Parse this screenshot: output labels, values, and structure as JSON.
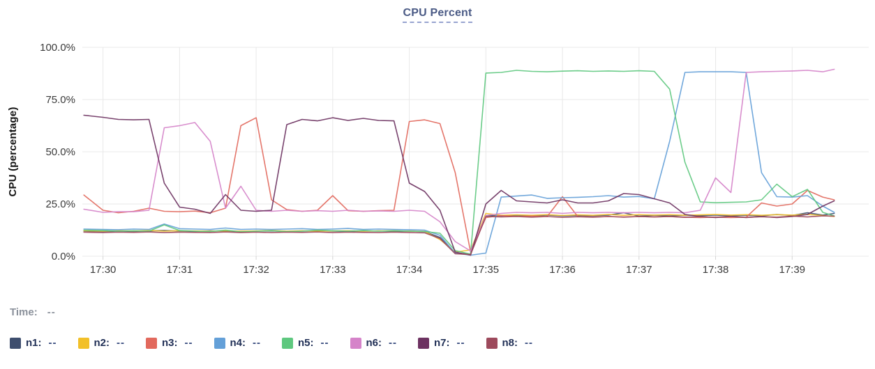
{
  "title": "CPU Percent",
  "y_axis_title": "CPU (percentage)",
  "time": {
    "label": "Time:",
    "value": "--"
  },
  "legend": {
    "items": [
      {
        "label": "n1:",
        "value": "--",
        "color": "#3e4e6e"
      },
      {
        "label": "n2:",
        "value": "--",
        "color": "#f2c029"
      },
      {
        "label": "n3:",
        "value": "--",
        "color": "#e2695d"
      },
      {
        "label": "n4:",
        "value": "--",
        "color": "#64a0d8"
      },
      {
        "label": "n5:",
        "value": "--",
        "color": "#5ec87f"
      },
      {
        "label": "n6:",
        "value": "--",
        "color": "#d583c9"
      },
      {
        "label": "n7:",
        "value": "--",
        "color": "#6d3261"
      },
      {
        "label": "n8:",
        "value": "--",
        "color": "#9d4a5c"
      }
    ]
  },
  "colors": {
    "title": "#4a5a85",
    "title_underline": "#97a3cf",
    "gridline": "#e8e8e8",
    "tick_mark": "#d4d4d4",
    "tick_text": "#3a3a3a"
  },
  "chart_data": {
    "type": "line",
    "title": "CPU Percent",
    "xlabel": "",
    "ylabel": "CPU (percentage)",
    "x_unit": "minutes after 17:30",
    "xlim": [
      -0.27,
      10.0
    ],
    "ylim": [
      0,
      100
    ],
    "grid": true,
    "legend_position": "bottom",
    "y_ticks": [
      0,
      25,
      50,
      75,
      100
    ],
    "y_tick_labels": [
      "0.0%",
      "25.0%",
      "50.0%",
      "75.0%",
      "100.0%"
    ],
    "x_ticks": [
      0,
      1,
      2,
      3,
      4,
      5,
      6,
      7,
      8,
      9
    ],
    "x_tick_labels": [
      "17:30",
      "17:31",
      "17:32",
      "17:33",
      "17:34",
      "17:35",
      "17:36",
      "17:37",
      "17:38",
      "17:39"
    ],
    "x": [
      -0.25,
      0,
      0.2,
      0.4,
      0.6,
      0.8,
      1.0,
      1.2,
      1.4,
      1.6,
      1.8,
      2.0,
      2.2,
      2.4,
      2.6,
      2.8,
      3.0,
      3.2,
      3.4,
      3.6,
      3.8,
      4.0,
      4.2,
      4.4,
      4.6,
      4.8,
      5.0,
      5.2,
      5.4,
      5.6,
      5.8,
      6.0,
      6.2,
      6.4,
      6.6,
      6.8,
      7.0,
      7.2,
      7.4,
      7.6,
      7.8,
      8.0,
      8.2,
      8.4,
      8.6,
      8.8,
      9.0,
      9.2,
      9.4,
      9.55
    ],
    "series": [
      {
        "name": "n1",
        "color": "#3e4e6e",
        "values": [
          12,
          11.8,
          12,
          11.9,
          12.1,
          12.3,
          12,
          11.9,
          12.1,
          12,
          11.8,
          12,
          12.1,
          11.9,
          12,
          12.2,
          12,
          11.9,
          12,
          12.1,
          11.9,
          12,
          11.8,
          9,
          1.5,
          1,
          19.5,
          19.3,
          19.6,
          19.3,
          19.7,
          19.3,
          19.5,
          19.4,
          19.7,
          20.8,
          19.2,
          19.6,
          19.3,
          19.6,
          19.4,
          19.7,
          19.3,
          19.6,
          19.3,
          20,
          19.5,
          20.8,
          19.7,
          20.5
        ]
      },
      {
        "name": "n2",
        "color": "#f2c029",
        "values": [
          12.2,
          12,
          12.2,
          12.1,
          12.3,
          12,
          12.2,
          12.1,
          12,
          12.2,
          12,
          12.1,
          12.3,
          12,
          12.2,
          12,
          12.1,
          12.2,
          12,
          12.1,
          12.2,
          12,
          11.9,
          8,
          2,
          3,
          20.5,
          19.6,
          19.8,
          19.6,
          19.9,
          19.5,
          19.8,
          19.6,
          20,
          19.6,
          19.9,
          19.7,
          19.9,
          19.6,
          19.8,
          20,
          19.7,
          19.9,
          19.6,
          19.9,
          19.7,
          20,
          19.5,
          19
        ]
      },
      {
        "name": "n3",
        "color": "#e2695d",
        "values": [
          29.3,
          22,
          20.8,
          21.5,
          23,
          21.5,
          21.3,
          21.6,
          20.8,
          23,
          62.5,
          66.3,
          27,
          22.3,
          21.5,
          22,
          29,
          21.8,
          21.5,
          21.8,
          22,
          64.5,
          65.3,
          63.5,
          40,
          2,
          18.5,
          19.5,
          19,
          19.2,
          19,
          28.5,
          19,
          18.8,
          19,
          18.8,
          19,
          18.8,
          19,
          18.7,
          18.5,
          18.7,
          18.5,
          18.7,
          25.5,
          24,
          25,
          31.5,
          28.3,
          27
        ]
      },
      {
        "name": "n4",
        "color": "#64a0d8",
        "values": [
          13,
          12.8,
          12.7,
          13,
          12.8,
          15.4,
          13.2,
          13,
          12.8,
          13.5,
          12.8,
          13,
          12.8,
          13,
          13.2,
          12.8,
          13,
          13.3,
          12.8,
          13,
          12.8,
          12.7,
          12.5,
          10,
          1.5,
          0.5,
          1.5,
          28.3,
          28.8,
          29.3,
          27.7,
          28,
          28.2,
          28.5,
          29,
          28.3,
          28.6,
          27.5,
          55,
          88,
          88.3,
          88.3,
          88.3,
          88,
          40,
          28.5,
          28.3,
          29,
          24,
          21
        ]
      },
      {
        "name": "n5",
        "color": "#5ec87f",
        "values": [
          12.5,
          12.3,
          12,
          12.2,
          12,
          15,
          12.3,
          12,
          11.8,
          12.5,
          11.7,
          12,
          12.2,
          11.8,
          12,
          12.5,
          12.2,
          12,
          12.3,
          12,
          12.2,
          12,
          11.8,
          11,
          2.7,
          1,
          87.7,
          88,
          89,
          88.5,
          88.3,
          88.6,
          88.8,
          88.5,
          88.7,
          88.5,
          88.8,
          88.5,
          80,
          45,
          26,
          25.6,
          25.8,
          26,
          27,
          34.5,
          28.5,
          32,
          21,
          19.3
        ]
      },
      {
        "name": "n6",
        "color": "#d583c9",
        "values": [
          22.5,
          21,
          21.3,
          21.3,
          22,
          61.5,
          62.5,
          64,
          55,
          23,
          33.5,
          22,
          21.5,
          22,
          21.5,
          21.8,
          21.5,
          22,
          21.5,
          21.7,
          21.5,
          22,
          21.5,
          16.5,
          7,
          2.5,
          19.5,
          20.5,
          21,
          20.8,
          21,
          20.5,
          21,
          20.8,
          21,
          20.8,
          21,
          20.8,
          21,
          20.8,
          22,
          37.5,
          30.5,
          88,
          88.3,
          88.5,
          88.7,
          89,
          88.3,
          89.5
        ]
      },
      {
        "name": "n7",
        "color": "#6d3261",
        "values": [
          67.5,
          66.5,
          65.5,
          65.3,
          65.5,
          35,
          23.5,
          22.5,
          20.5,
          29.5,
          22,
          21.5,
          22,
          63,
          65.5,
          64.8,
          66.3,
          65,
          66,
          65,
          64.8,
          35,
          31,
          22,
          2,
          0.5,
          25,
          31.5,
          26.5,
          26,
          25.5,
          27,
          25.5,
          25.5,
          26.5,
          30,
          29.5,
          27.5,
          25.5,
          20,
          19,
          18.5,
          19,
          18.5,
          19,
          18.5,
          19,
          20,
          24,
          26.5
        ]
      },
      {
        "name": "n8",
        "color": "#9d4a5c",
        "values": [
          11.5,
          11.3,
          11.5,
          11.4,
          11.6,
          11.3,
          11.5,
          11.4,
          11.3,
          11.6,
          11.3,
          11.5,
          11.3,
          11.5,
          11.4,
          11.6,
          11.3,
          11.5,
          11.4,
          11.3,
          11.5,
          11.3,
          11.2,
          8.5,
          1.2,
          0.8,
          19,
          18.8,
          19,
          18.7,
          19,
          18.6,
          18.9,
          18.7,
          19,
          18.7,
          19,
          18.8,
          19,
          18.6,
          18.9,
          18.7,
          19,
          18.6,
          18.9,
          18.7,
          19.2,
          18.8,
          19.3,
          19.2
        ]
      }
    ]
  }
}
